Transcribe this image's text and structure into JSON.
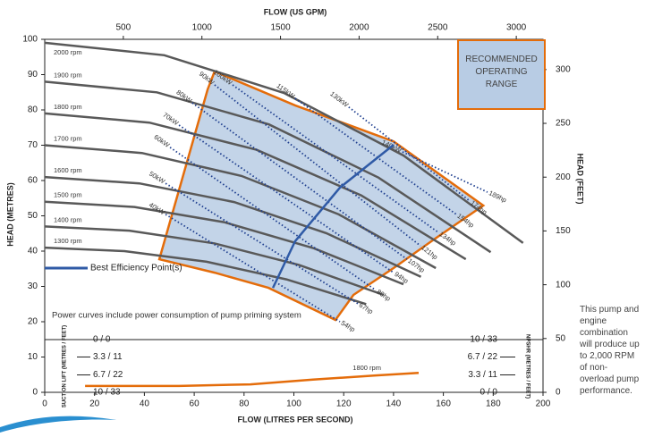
{
  "chart_data": {
    "type": "pump-curve",
    "x_label": "FLOW (LITRES PER SECOND)",
    "xlim": [
      0,
      200
    ],
    "xticks": [
      0,
      20,
      40,
      60,
      80,
      100,
      120,
      140,
      160,
      180,
      200
    ],
    "x2_label": "FLOW (US GPM)",
    "x2lim": [
      0,
      3170
    ],
    "x2ticks": [
      500,
      1000,
      1500,
      2000,
      2500,
      3000
    ],
    "y_label": "HEAD (METRES)",
    "ylim": [
      0,
      100
    ],
    "yticks": [
      0,
      10,
      20,
      30,
      40,
      50,
      60,
      70,
      80,
      90,
      100
    ],
    "y2_label": "HEAD (FEET)",
    "y2lim": [
      0,
      328.1
    ],
    "y2ticks": [
      0,
      50,
      100,
      150,
      200,
      250,
      300
    ],
    "series": [
      {
        "name": "2000 rpm",
        "color": "#595959",
        "x": [
          0,
          48,
          96,
          144,
          192
        ],
        "y": [
          99,
          95.5,
          84.8,
          67.1,
          42.3
        ]
      },
      {
        "name": "1900 rpm",
        "color": "#595959",
        "x": [
          0,
          45,
          90,
          134,
          179
        ],
        "y": [
          88,
          85,
          75.9,
          60.8,
          39.7
        ]
      },
      {
        "name": "1800 rpm",
        "color": "#595959",
        "x": [
          0,
          42,
          85,
          127,
          169
        ],
        "y": [
          79,
          76.4,
          68.7,
          55.8,
          37.7
        ]
      },
      {
        "name": "1700 rpm",
        "color": "#595959",
        "x": [
          0,
          39,
          79,
          118,
          157
        ],
        "y": [
          70,
          67.8,
          61.3,
          50.4,
          35.2
        ]
      },
      {
        "name": "1600 rpm",
        "color": "#595959",
        "x": [
          0,
          38,
          76,
          113,
          151
        ],
        "y": [
          61,
          59.2,
          53.9,
          45.1,
          32.7
        ]
      },
      {
        "name": "1500 rpm",
        "color": "#595959",
        "x": [
          0,
          36,
          72,
          108,
          144
        ],
        "y": [
          54,
          52.5,
          48.2,
          40.8,
          30.6
        ]
      },
      {
        "name": "1400 rpm",
        "color": "#595959",
        "x": [
          0,
          34,
          68,
          102,
          136
        ],
        "y": [
          47,
          45.8,
          42.2,
          36.1,
          27.6
        ]
      },
      {
        "name": "1300 rpm",
        "color": "#595959",
        "x": [
          0,
          32,
          65,
          97,
          129
        ],
        "y": [
          41,
          40,
          37,
          32,
          25
        ]
      }
    ],
    "operating_range": {
      "label": "RECOMMENDED OPERATING RANGE",
      "color": "#e46c0a",
      "fill": "#b8cce4",
      "x": [
        46,
        65.4,
        68.2,
        100.5,
        140,
        176,
        156.2,
        140,
        123.9,
        116.7,
        89.8,
        68.2,
        46
      ],
      "y": [
        37.7,
        85.8,
        90.9,
        81.3,
        71.1,
        52.9,
        43.3,
        35.2,
        27.6,
        20.5,
        29.6,
        33.9,
        37.7
      ]
    },
    "power_lines": {
      "color": "#1f3f8f",
      "lines": [
        {
          "kw": "40kW",
          "hp": "54hp",
          "x": [
            48.5,
            118.5
          ],
          "y": [
            50.4,
            20
          ]
        },
        {
          "kw": "50kW",
          "hp": "67hp",
          "x": [
            48.5,
            125.7
          ],
          "y": [
            59.2,
            25.1
          ]
        },
        {
          "kw": "60kW",
          "hp": "80hp",
          "x": [
            50.3,
            132.9
          ],
          "y": [
            69.4,
            28.9
          ]
        },
        {
          "kw": "70kW",
          "hp": "94hp",
          "x": [
            53.9,
            140
          ],
          "y": [
            75.7,
            33.9
          ]
        },
        {
          "kw": "80kW",
          "hp": "107hp",
          "x": [
            59.2,
            145.4
          ],
          "y": [
            82,
            37.7
          ]
        },
        {
          "kw": "90kW",
          "hp": "121hp",
          "x": [
            68.2,
            150.8
          ],
          "y": [
            87.1,
            41.5
          ]
        },
        {
          "kw": "100kW",
          "hp": "134hp",
          "x": [
            75.4,
            158
          ],
          "y": [
            87.1,
            45.3
          ]
        },
        {
          "kw": "115kW",
          "hp": "154hp",
          "x": [
            100.5,
            165.2
          ],
          "y": [
            83.3,
            50.4
          ]
        },
        {
          "kw": "130kW",
          "hp": "174hp",
          "x": [
            122,
            170.6
          ],
          "y": [
            80.8,
            54.2
          ]
        },
        {
          "kw": "140kW",
          "hp": "189hp",
          "x": [
            143.6,
            177.7
          ],
          "y": [
            68.1,
            56.7
          ]
        }
      ]
    },
    "efficiency": {
      "name": "Best Efficiency Point(s)",
      "color": "#2f5aa6",
      "x": [
        91.6,
        100.5,
        118.5,
        140
      ],
      "y": [
        29.6,
        42.8,
        58,
        70.1
      ]
    },
    "note": "Power curves include power consumption of pump priming system",
    "lower_panel": {
      "left_label": "SUCTION LIFT (METRES / FEET)",
      "left_lim": [
        10,
        0
      ],
      "left_ticks": [
        {
          "value": 0,
          "label": "0 / 0"
        },
        {
          "value": 3.3,
          "label": "3.3 / 11"
        },
        {
          "value": 6.7,
          "label": "6.7 / 22"
        },
        {
          "value": 10,
          "label": "10 / 33"
        }
      ],
      "right_label": "NPSHR (METRES / FEET)",
      "right_lim": [
        0,
        10
      ],
      "right_ticks": [
        {
          "value": 10,
          "label": "10 / 33"
        },
        {
          "value": 6.7,
          "label": "6.7 / 22"
        },
        {
          "value": 3.3,
          "label": "3.3 / 11"
        },
        {
          "value": 0,
          "label": "0 / 0"
        }
      ],
      "series": {
        "name": "1800 rpm",
        "color": "#e46c0a",
        "x": [
          16.2,
          53.9,
          82.6,
          107.7,
          132.9,
          150.1
        ],
        "y": [
          1.2,
          1.2,
          1.5,
          2.4,
          3.2,
          3.7
        ]
      }
    }
  },
  "side_note": "This pump and engine combination will produce up to 2,000 RPM of non-overload pump performance."
}
